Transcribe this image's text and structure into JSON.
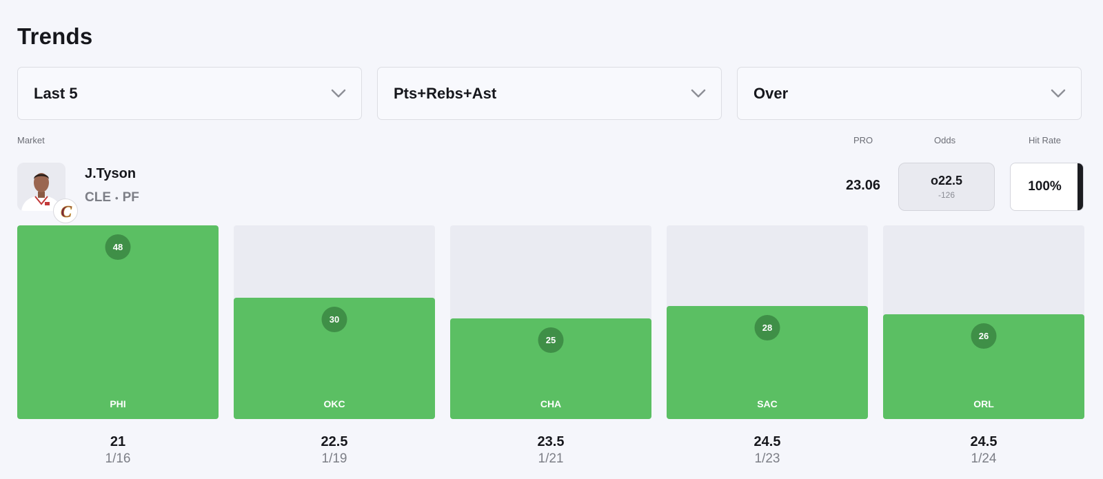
{
  "page_title": "Trends",
  "filters": [
    {
      "label": "Last 5",
      "icon": "chevron-down-icon"
    },
    {
      "label": "Pts+Rebs+Ast",
      "icon": "chevron-down-icon"
    },
    {
      "label": "Over",
      "icon": "chevron-down-icon"
    }
  ],
  "columns": {
    "market": "Market",
    "pro": "PRO",
    "odds": "Odds",
    "hit_rate": "Hit Rate"
  },
  "player": {
    "name": "J.Tyson",
    "team": "CLE",
    "separator": "•",
    "position": "PF",
    "pro_value": "23.06",
    "odds_line": "o22.5",
    "odds_price": "-126",
    "hit_rate": "100%",
    "team_logo_letter": "C"
  },
  "colors": {
    "hit": "#5bbf63",
    "bubble": "#3f8f47",
    "track": "#eaebf2"
  },
  "chart_data": {
    "type": "bar",
    "categories": [
      "PHI",
      "OKC",
      "CHA",
      "SAC",
      "ORL"
    ],
    "values": [
      48,
      30,
      25,
      28,
      26
    ],
    "lines": [
      "21",
      "22.5",
      "23.5",
      "24.5",
      "24.5"
    ],
    "dates": [
      "1/16",
      "1/19",
      "1/21",
      "1/23",
      "1/24"
    ],
    "ylim": [
      0,
      48
    ]
  }
}
